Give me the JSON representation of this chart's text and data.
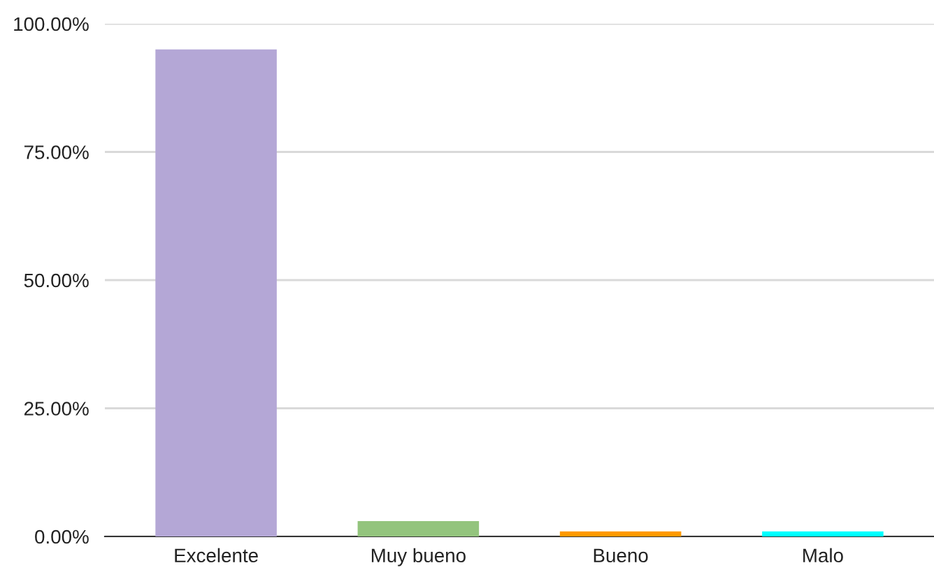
{
  "chart_data": {
    "type": "bar",
    "categories": [
      "Excelente",
      "Muy bueno",
      "Bueno",
      "Malo"
    ],
    "values": [
      95,
      3,
      1,
      1
    ],
    "colors": [
      "#b4a7d6",
      "#93c47d",
      "#ff9900",
      "#00ffff"
    ],
    "ylim": [
      0,
      100
    ],
    "yticks": [
      {
        "value": 0,
        "label": "0.00%"
      },
      {
        "value": 25,
        "label": "25.00%"
      },
      {
        "value": 50,
        "label": "50.00%"
      },
      {
        "value": 75,
        "label": "75.00%"
      },
      {
        "value": 100,
        "label": "100.00%"
      }
    ],
    "grid": "y",
    "legend": false
  }
}
